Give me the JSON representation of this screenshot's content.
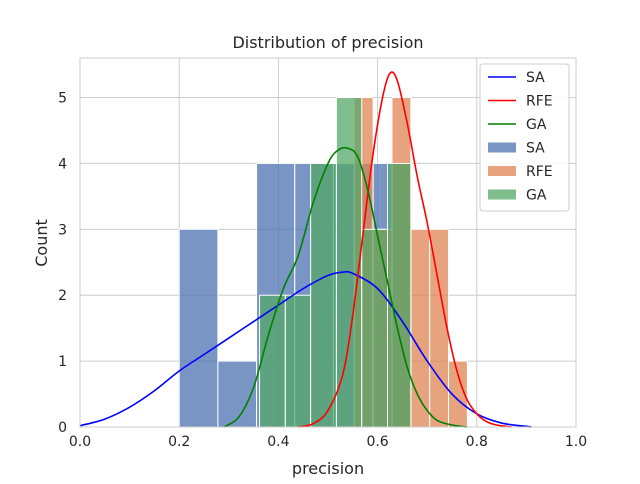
{
  "chart_data": {
    "type": "histogram",
    "title": "Distribution of precision",
    "xlabel": "precision",
    "ylabel": "Count",
    "xlim": [
      0.0,
      1.0
    ],
    "ylim": [
      0,
      5.6
    ],
    "xticks": [
      "0.0",
      "0.2",
      "0.4",
      "0.6",
      "0.8",
      "1.0"
    ],
    "yticks": [
      "0",
      "1",
      "2",
      "3",
      "4",
      "5"
    ],
    "grid": true,
    "legend_position": "top-right",
    "legend": [
      {
        "label": "SA",
        "kind": "line",
        "color": "#0000ff"
      },
      {
        "label": "RFE",
        "kind": "line",
        "color": "#ff0000"
      },
      {
        "label": "GA",
        "kind": "line",
        "color": "#008000"
      },
      {
        "label": "SA",
        "kind": "patch",
        "color": "#4c72b0"
      },
      {
        "label": "RFE",
        "kind": "patch",
        "color": "#dd8452"
      },
      {
        "label": "GA",
        "kind": "patch",
        "color": "#55a868"
      }
    ],
    "histograms": [
      {
        "name": "SA",
        "color": "#4c72b0",
        "bins": [
          {
            "x0": 0.2,
            "x1": 0.278,
            "count": 3
          },
          {
            "x0": 0.278,
            "x1": 0.356,
            "count": 1
          },
          {
            "x0": 0.356,
            "x1": 0.433,
            "count": 4
          },
          {
            "x0": 0.433,
            "x1": 0.511,
            "count": 4
          },
          {
            "x0": 0.511,
            "x1": 0.589,
            "count": 4
          },
          {
            "x0": 0.589,
            "x1": 0.667,
            "count": 4
          }
        ]
      },
      {
        "name": "RFE",
        "color": "#dd8452",
        "bins": [
          {
            "x0": 0.553,
            "x1": 0.591,
            "count": 5
          },
          {
            "x0": 0.591,
            "x1": 0.629,
            "count": 3
          },
          {
            "x0": 0.629,
            "x1": 0.667,
            "count": 5
          },
          {
            "x0": 0.667,
            "x1": 0.705,
            "count": 3
          },
          {
            "x0": 0.705,
            "x1": 0.743,
            "count": 3
          },
          {
            "x0": 0.743,
            "x1": 0.781,
            "count": 1
          }
        ]
      },
      {
        "name": "GA",
        "color": "#55a868",
        "bins": [
          {
            "x0": 0.362,
            "x1": 0.414,
            "count": 2
          },
          {
            "x0": 0.414,
            "x1": 0.465,
            "count": 2
          },
          {
            "x0": 0.465,
            "x1": 0.517,
            "count": 4
          },
          {
            "x0": 0.517,
            "x1": 0.568,
            "count": 5
          },
          {
            "x0": 0.568,
            "x1": 0.62,
            "count": 3
          },
          {
            "x0": 0.62,
            "x1": 0.667,
            "count": 4
          }
        ]
      }
    ],
    "kde": [
      {
        "name": "SA",
        "color": "#0000ff",
        "x": [
          0.0,
          0.05,
          0.1,
          0.15,
          0.2,
          0.25,
          0.3,
          0.35,
          0.4,
          0.45,
          0.5,
          0.53,
          0.55,
          0.6,
          0.65,
          0.7,
          0.75,
          0.8,
          0.85,
          0.9,
          0.91
        ],
        "y": [
          0.02,
          0.12,
          0.3,
          0.55,
          0.85,
          1.1,
          1.35,
          1.6,
          1.85,
          2.1,
          2.3,
          2.35,
          2.33,
          2.1,
          1.6,
          1.0,
          0.5,
          0.2,
          0.06,
          0.01,
          0.0
        ]
      },
      {
        "name": "RFE",
        "color": "#ff0000",
        "x": [
          0.44,
          0.47,
          0.5,
          0.53,
          0.55,
          0.57,
          0.59,
          0.61,
          0.625,
          0.64,
          0.66,
          0.68,
          0.7,
          0.72,
          0.74,
          0.76,
          0.78,
          0.8,
          0.82,
          0.84,
          0.87
        ],
        "y": [
          0.0,
          0.05,
          0.25,
          0.8,
          1.7,
          2.9,
          4.1,
          5.0,
          5.37,
          5.25,
          4.6,
          3.8,
          3.1,
          2.3,
          1.5,
          0.85,
          0.42,
          0.2,
          0.08,
          0.03,
          0.0
        ]
      },
      {
        "name": "GA",
        "color": "#008000",
        "x": [
          0.29,
          0.32,
          0.35,
          0.38,
          0.41,
          0.44,
          0.47,
          0.5,
          0.52,
          0.54,
          0.56,
          0.58,
          0.6,
          0.62,
          0.64,
          0.66,
          0.68,
          0.7,
          0.72,
          0.75,
          0.78
        ],
        "y": [
          0.0,
          0.15,
          0.6,
          1.4,
          2.1,
          2.6,
          3.4,
          4.0,
          4.2,
          4.23,
          4.1,
          3.6,
          2.9,
          2.2,
          1.5,
          0.9,
          0.5,
          0.25,
          0.1,
          0.03,
          0.0
        ]
      }
    ]
  }
}
